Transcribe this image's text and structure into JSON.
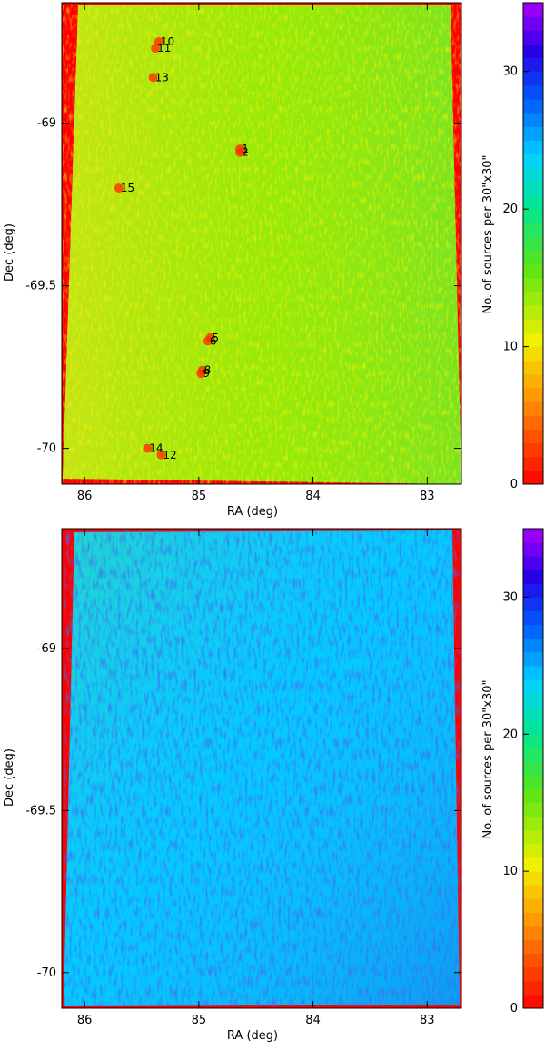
{
  "chart_data": [
    {
      "type": "heatmap",
      "panel": "top",
      "xlabel": "RA (deg)",
      "ylabel": "Dec (deg)",
      "colorbar_label": "No. of sources per 30\"x30\"",
      "x_ticks": [
        "86",
        "85",
        "84",
        "83"
      ],
      "y_ticks": [
        "-69",
        "-69.5",
        "-70"
      ],
      "cbar_ticks": [
        "0",
        "10",
        "20",
        "30"
      ],
      "xlim": [
        86.2,
        82.7
      ],
      "ylim": [
        -70.11,
        -68.63
      ],
      "clim": [
        0,
        35
      ],
      "dominant_level": 14,
      "source_labels": [
        {
          "id": "10",
          "ra": 85.35,
          "dec": -68.75
        },
        {
          "id": "11",
          "ra": 85.38,
          "dec": -68.77
        },
        {
          "id": "13",
          "ra": 85.4,
          "dec": -68.86
        },
        {
          "id": "1",
          "ra": 84.64,
          "dec": -69.08
        },
        {
          "id": "2",
          "ra": 84.64,
          "dec": -69.09
        },
        {
          "id": "15",
          "ra": 85.7,
          "dec": -69.2
        },
        {
          "id": "5",
          "ra": 84.9,
          "dec": -69.66
        },
        {
          "id": "6",
          "ra": 84.92,
          "dec": -69.67
        },
        {
          "id": "8",
          "ra": 84.97,
          "dec": -69.76
        },
        {
          "id": "9",
          "ra": 84.98,
          "dec": -69.77
        },
        {
          "id": "14",
          "ra": 85.45,
          "dec": -70.0
        },
        {
          "id": "12",
          "ra": 85.33,
          "dec": -70.02
        }
      ]
    },
    {
      "type": "heatmap",
      "panel": "bottom",
      "xlabel": "RA (deg)",
      "ylabel": "Dec (deg)",
      "colorbar_label": "No. of sources per 30\"x30\"",
      "x_ticks": [
        "86",
        "85",
        "84",
        "83"
      ],
      "y_ticks": [
        "-69",
        "-69.5",
        "-70"
      ],
      "cbar_ticks": [
        "0",
        "10",
        "20",
        "30"
      ],
      "xlim": [
        86.2,
        82.7
      ],
      "ylim": [
        -70.11,
        -68.63
      ],
      "clim": [
        0,
        35
      ],
      "dominant_level": 24
    }
  ],
  "colors": {
    "edge": "#ff0000",
    "top_field": "#9be000",
    "bottom_field": "#1aa8ff"
  }
}
